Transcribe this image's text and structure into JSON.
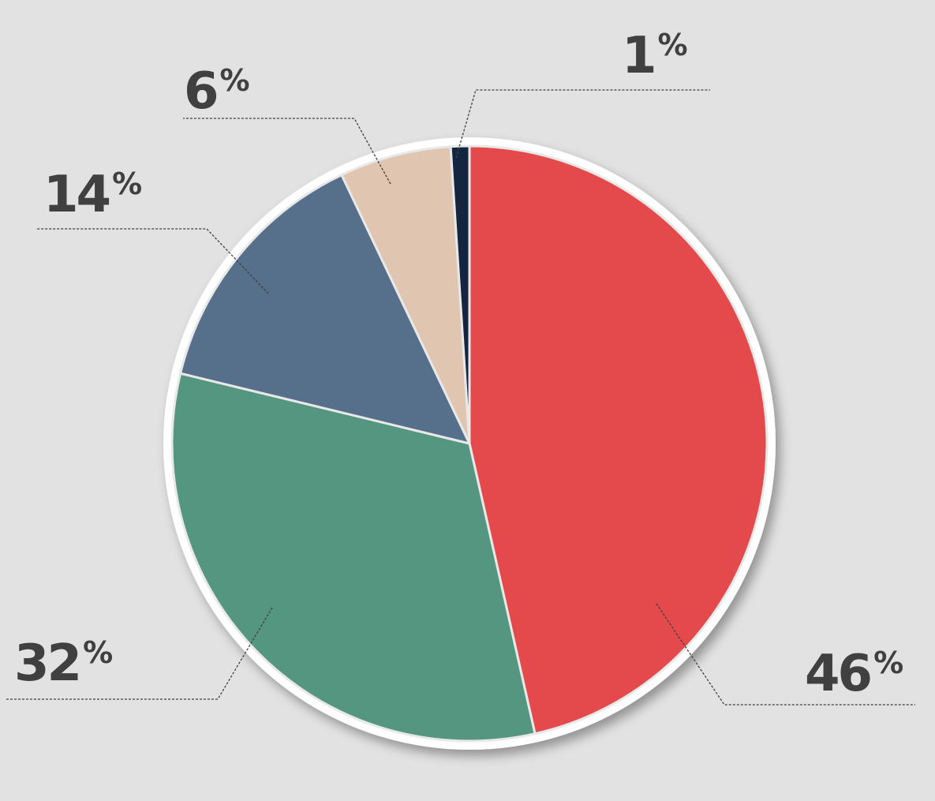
{
  "chart_data": {
    "type": "pie",
    "categories": [
      null,
      null,
      null,
      null,
      null
    ],
    "values": [
      46,
      32,
      14,
      6,
      1
    ],
    "value_labels": [
      "46%",
      "32%",
      "14%",
      "6%",
      "1%"
    ],
    "colors": [
      "#e4494b",
      "#559680",
      "#56708b",
      "#e0c5b0",
      "#14253f"
    ]
  }
}
